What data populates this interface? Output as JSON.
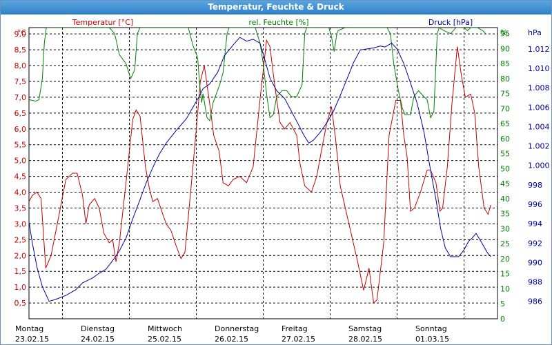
{
  "window": {
    "title": "Temperatur, Feuchte & Druck"
  },
  "chart_data": {
    "type": "line",
    "title": "Temperatur, Feuchte & Druck",
    "x_labels": [
      {
        "day": "Montag",
        "date": "23.02.15"
      },
      {
        "day": "Dienstag",
        "date": "24.02.15"
      },
      {
        "day": "Mittwoch",
        "date": "25.02.15"
      },
      {
        "day": "Donnerstag",
        "date": "26.02.15"
      },
      {
        "day": "Freitag",
        "date": "27.02.15"
      },
      {
        "day": "Samstag",
        "date": "28.02.15"
      },
      {
        "day": "Sonntag",
        "date": "01.03.15"
      }
    ],
    "grid": true,
    "axes": {
      "temperature": {
        "unit": "°C",
        "ylim": [
          0,
          9.2
        ],
        "ticks": [
          "0,5",
          "1,0",
          "1,5",
          "2,0",
          "2,5",
          "3,0",
          "3,5",
          "4,0",
          "4,5",
          "5,0",
          "5,5",
          "6,0",
          "6,5",
          "7,0",
          "7,5",
          "8,0",
          "8,5",
          "9,0"
        ],
        "color": "#c00000"
      },
      "humidity": {
        "unit": "%",
        "ylim": [
          0,
          97
        ],
        "ticks": [
          "0",
          "5",
          "10",
          "15",
          "20",
          "25",
          "30",
          "35",
          "40",
          "45",
          "50",
          "55",
          "60",
          "65",
          "70",
          "75",
          "80",
          "85",
          "90",
          "95"
        ],
        "color": "#008000"
      },
      "pressure": {
        "unit": "hPa",
        "ylim": [
          984.2,
          1014.2
        ],
        "ticks": [
          "986",
          "988",
          "990",
          "992",
          "994",
          "996",
          "998",
          "1.000",
          "1.002",
          "1.004",
          "1.006",
          "1.008",
          "1.010",
          "1.012"
        ],
        "color": "#0000a0"
      }
    },
    "series": [
      {
        "name": "Temperatur [°C]",
        "axis": "temperature",
        "color": "#c00000",
        "points": [
          [
            0,
            3.7
          ],
          [
            0.05,
            3.9
          ],
          [
            0.12,
            4.0
          ],
          [
            0.18,
            3.8
          ],
          [
            0.25,
            1.6
          ],
          [
            0.33,
            2.0
          ],
          [
            0.45,
            3.3
          ],
          [
            0.55,
            4.4
          ],
          [
            0.65,
            4.6
          ],
          [
            0.72,
            4.6
          ],
          [
            0.8,
            3.9
          ],
          [
            0.85,
            3.0
          ],
          [
            0.9,
            3.6
          ],
          [
            0.98,
            3.8
          ],
          [
            1.05,
            3.5
          ],
          [
            1.12,
            2.7
          ],
          [
            1.2,
            2.4
          ],
          [
            1.25,
            2.5
          ],
          [
            1.3,
            1.8
          ],
          [
            1.35,
            2.4
          ],
          [
            1.45,
            4.3
          ],
          [
            1.55,
            6.3
          ],
          [
            1.6,
            6.6
          ],
          [
            1.66,
            6.4
          ],
          [
            1.74,
            4.8
          ],
          [
            1.8,
            4.1
          ],
          [
            1.85,
            3.7
          ],
          [
            1.92,
            3.8
          ],
          [
            2.0,
            3.3
          ],
          [
            2.05,
            3.0
          ],
          [
            2.12,
            2.8
          ],
          [
            2.2,
            2.3
          ],
          [
            2.27,
            1.9
          ],
          [
            2.33,
            2.1
          ],
          [
            2.42,
            4.1
          ],
          [
            2.5,
            6.0
          ],
          [
            2.56,
            7.5
          ],
          [
            2.62,
            8.0
          ],
          [
            2.7,
            6.8
          ],
          [
            2.76,
            5.8
          ],
          [
            2.84,
            5.3
          ],
          [
            2.9,
            4.3
          ],
          [
            2.98,
            4.2
          ],
          [
            3.05,
            4.4
          ],
          [
            3.15,
            4.5
          ],
          [
            3.25,
            4.3
          ],
          [
            3.35,
            4.8
          ],
          [
            3.45,
            6.9
          ],
          [
            3.55,
            8.8
          ],
          [
            3.6,
            8.6
          ],
          [
            3.67,
            7.4
          ],
          [
            3.75,
            6.2
          ],
          [
            3.82,
            6.0
          ],
          [
            3.9,
            6.2
          ],
          [
            4.0,
            5.8
          ],
          [
            4.05,
            4.9
          ],
          [
            4.12,
            4.2
          ],
          [
            4.22,
            4.0
          ],
          [
            4.3,
            4.5
          ],
          [
            4.36,
            5.2
          ],
          [
            4.45,
            6.2
          ],
          [
            4.52,
            6.7
          ],
          [
            4.58,
            5.7
          ],
          [
            4.65,
            4.2
          ],
          [
            4.78,
            3.0
          ],
          [
            4.9,
            1.9
          ],
          [
            5.0,
            0.9
          ],
          [
            5.08,
            1.6
          ],
          [
            5.15,
            0.5
          ],
          [
            5.2,
            0.6
          ],
          [
            5.3,
            2.4
          ],
          [
            5.38,
            5.8
          ],
          [
            5.48,
            6.9
          ],
          [
            5.55,
            6.9
          ],
          [
            5.6,
            5.8
          ],
          [
            5.65,
            5.1
          ],
          [
            5.7,
            3.4
          ],
          [
            5.76,
            3.5
          ],
          [
            5.85,
            4.0
          ],
          [
            5.95,
            4.7
          ],
          [
            6.0,
            4.7
          ],
          [
            6.08,
            4.3
          ],
          [
            6.14,
            3.4
          ],
          [
            6.18,
            3.5
          ],
          [
            6.25,
            4.8
          ],
          [
            6.32,
            6.8
          ],
          [
            6.4,
            8.6
          ],
          [
            6.46,
            7.7
          ],
          [
            6.52,
            7.0
          ],
          [
            6.6,
            7.1
          ],
          [
            6.66,
            6.5
          ],
          [
            6.72,
            4.8
          ],
          [
            6.8,
            3.5
          ],
          [
            6.86,
            3.3
          ],
          [
            6.9,
            3.6
          ]
        ]
      },
      {
        "name": "rel. Feuchte [%]",
        "axis": "humidity",
        "color": "#008000",
        "points": [
          [
            0,
            73
          ],
          [
            0.1,
            72.5
          ],
          [
            0.15,
            73
          ],
          [
            0.2,
            80
          ],
          [
            0.23,
            92
          ],
          [
            0.26,
            97
          ],
          [
            1.2,
            97
          ],
          [
            1.28,
            95
          ],
          [
            1.35,
            88
          ],
          [
            1.45,
            85
          ],
          [
            1.52,
            80
          ],
          [
            1.58,
            83
          ],
          [
            1.62,
            95
          ],
          [
            1.66,
            97
          ],
          [
            2.38,
            97
          ],
          [
            2.45,
            91
          ],
          [
            2.52,
            87
          ],
          [
            2.55,
            78
          ],
          [
            2.58,
            72
          ],
          [
            2.6,
            75
          ],
          [
            2.66,
            67
          ],
          [
            2.7,
            66
          ],
          [
            2.75,
            72
          ],
          [
            2.85,
            78
          ],
          [
            2.9,
            82
          ],
          [
            2.96,
            95
          ],
          [
            2.99,
            97
          ],
          [
            3.38,
            97
          ],
          [
            3.45,
            92
          ],
          [
            3.5,
            85
          ],
          [
            3.55,
            75
          ],
          [
            3.6,
            67
          ],
          [
            3.65,
            68
          ],
          [
            3.7,
            74
          ],
          [
            3.78,
            76
          ],
          [
            3.85,
            76
          ],
          [
            3.92,
            74
          ],
          [
            4.0,
            74
          ],
          [
            4.08,
            78
          ],
          [
            4.12,
            95
          ],
          [
            4.15,
            97
          ],
          [
            4.48,
            97
          ],
          [
            4.52,
            94
          ],
          [
            4.56,
            89
          ],
          [
            4.6,
            95
          ],
          [
            4.62,
            96
          ],
          [
            4.72,
            97
          ],
          [
            5.35,
            97
          ],
          [
            5.4,
            95
          ],
          [
            5.45,
            85
          ],
          [
            5.52,
            76
          ],
          [
            5.58,
            70
          ],
          [
            5.62,
            68
          ],
          [
            5.7,
            68
          ],
          [
            5.75,
            74
          ],
          [
            5.82,
            76
          ],
          [
            5.9,
            74
          ],
          [
            5.95,
            73
          ],
          [
            6.0,
            67
          ],
          [
            6.05,
            69
          ],
          [
            6.1,
            95
          ],
          [
            6.13,
            97
          ],
          [
            6.2,
            96
          ],
          [
            6.3,
            95
          ],
          [
            6.38,
            97
          ],
          [
            6.5,
            97
          ],
          [
            6.55,
            96
          ],
          [
            6.6,
            97
          ],
          [
            6.7,
            97
          ],
          [
            6.78,
            96
          ],
          [
            6.82,
            95
          ]
        ]
      },
      {
        "name": "Druck [hPa]",
        "axis": "pressure",
        "color": "#0000a0",
        "points": [
          [
            0,
            994.2
          ],
          [
            0.05,
            992.0
          ],
          [
            0.12,
            989.5
          ],
          [
            0.2,
            987.5
          ],
          [
            0.3,
            986.0
          ],
          [
            0.4,
            986.2
          ],
          [
            0.55,
            986.6
          ],
          [
            0.7,
            987.2
          ],
          [
            0.8,
            987.9
          ],
          [
            0.95,
            988.4
          ],
          [
            1.05,
            988.9
          ],
          [
            1.15,
            989.3
          ],
          [
            1.25,
            990.2
          ],
          [
            1.35,
            991.2
          ],
          [
            1.45,
            992.5
          ],
          [
            1.55,
            994.5
          ],
          [
            1.65,
            996.3
          ],
          [
            1.75,
            998.2
          ],
          [
            1.85,
            999.8
          ],
          [
            1.95,
            1001.2
          ],
          [
            2.05,
            1002.3
          ],
          [
            2.2,
            1003.6
          ],
          [
            2.35,
            1004.8
          ],
          [
            2.45,
            1006.0
          ],
          [
            2.55,
            1007.2
          ],
          [
            2.6,
            1007.9
          ],
          [
            2.7,
            1008.4
          ],
          [
            2.82,
            1009.6
          ],
          [
            2.92,
            1011.3
          ],
          [
            3.05,
            1012.4
          ],
          [
            3.15,
            1013.2
          ],
          [
            3.25,
            1012.8
          ],
          [
            3.35,
            1013.0
          ],
          [
            3.45,
            1012.6
          ],
          [
            3.52,
            1011.0
          ],
          [
            3.6,
            1009.0
          ],
          [
            3.7,
            1007.7
          ],
          [
            3.82,
            1006.9
          ],
          [
            3.92,
            1005.6
          ],
          [
            4.02,
            1004.3
          ],
          [
            4.1,
            1003.2
          ],
          [
            4.18,
            1002.3
          ],
          [
            4.25,
            1002.6
          ],
          [
            4.35,
            1003.4
          ],
          [
            4.45,
            1004.4
          ],
          [
            4.55,
            1005.6
          ],
          [
            4.65,
            1007.2
          ],
          [
            4.75,
            1008.9
          ],
          [
            4.85,
            1010.6
          ],
          [
            4.95,
            1011.9
          ],
          [
            5.05,
            1012.0
          ],
          [
            5.15,
            1012.1
          ],
          [
            5.25,
            1012.3
          ],
          [
            5.32,
            1012.2
          ],
          [
            5.42,
            1012.6
          ],
          [
            5.5,
            1012.0
          ],
          [
            5.6,
            1010.5
          ],
          [
            5.7,
            1008.5
          ],
          [
            5.8,
            1006.4
          ],
          [
            5.9,
            1003.5
          ],
          [
            6.0,
            999.5
          ],
          [
            6.08,
            996.5
          ],
          [
            6.15,
            993.5
          ],
          [
            6.22,
            991.5
          ],
          [
            6.3,
            990.6
          ],
          [
            6.42,
            990.6
          ],
          [
            6.5,
            991.3
          ],
          [
            6.57,
            992.2
          ],
          [
            6.62,
            992.5
          ],
          [
            6.68,
            993.0
          ],
          [
            6.75,
            992.2
          ],
          [
            6.85,
            991.0
          ],
          [
            6.9,
            990.6
          ]
        ]
      }
    ]
  }
}
